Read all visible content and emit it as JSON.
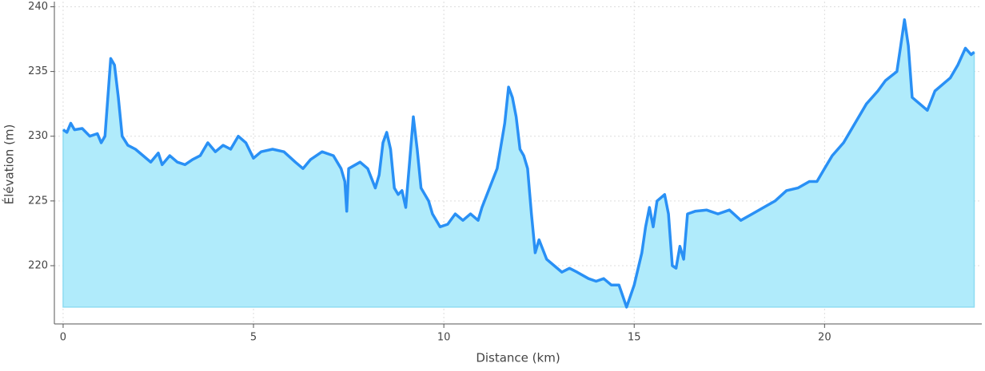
{
  "chart_data": {
    "type": "area",
    "x_label": "Distance (km)",
    "y_label": "Élévation (m)",
    "x": [
      0,
      0.1,
      0.2,
      0.3,
      0.5,
      0.7,
      0.9,
      1.0,
      1.1,
      1.2,
      1.25,
      1.35,
      1.45,
      1.55,
      1.7,
      1.9,
      2.1,
      2.3,
      2.5,
      2.6,
      2.8,
      3.0,
      3.2,
      3.4,
      3.6,
      3.8,
      4.0,
      4.2,
      4.4,
      4.6,
      4.8,
      5.0,
      5.2,
      5.5,
      5.8,
      6.1,
      6.3,
      6.5,
      6.8,
      7.1,
      7.3,
      7.4,
      7.45,
      7.5,
      7.8,
      8.0,
      8.2,
      8.3,
      8.4,
      8.5,
      8.6,
      8.7,
      8.8,
      8.9,
      9.0,
      9.1,
      9.2,
      9.3,
      9.4,
      9.6,
      9.7,
      9.9,
      10.1,
      10.3,
      10.5,
      10.7,
      10.9,
      11.0,
      11.2,
      11.4,
      11.6,
      11.7,
      11.8,
      11.9,
      12.0,
      12.1,
      12.2,
      12.3,
      12.4,
      12.5,
      12.7,
      12.9,
      13.1,
      13.3,
      13.5,
      13.8,
      14.0,
      14.2,
      14.4,
      14.6,
      14.8,
      15.0,
      15.2,
      15.3,
      15.4,
      15.5,
      15.6,
      15.8,
      15.9,
      16.0,
      16.1,
      16.2,
      16.3,
      16.4,
      16.6,
      16.9,
      17.2,
      17.5,
      17.8,
      18.1,
      18.4,
      18.7,
      19.0,
      19.3,
      19.6,
      19.8,
      20.0,
      20.2,
      20.5,
      20.8,
      21.1,
      21.4,
      21.6,
      21.9,
      22.0,
      22.1,
      22.2,
      22.3,
      22.5,
      22.7,
      22.9,
      23.1,
      23.3,
      23.5,
      23.7,
      23.85,
      23.93
    ],
    "values": [
      230.5,
      230.3,
      231,
      230.5,
      230.6,
      230,
      230.2,
      229.5,
      230,
      234,
      236,
      235.5,
      233,
      230,
      229.3,
      229,
      228.5,
      228,
      228.7,
      227.8,
      228.5,
      228,
      227.8,
      228.2,
      228.5,
      229.5,
      228.8,
      229.3,
      229,
      230,
      229.5,
      228.3,
      228.8,
      229,
      228.8,
      228,
      227.5,
      228.2,
      228.8,
      228.5,
      227.5,
      226.5,
      224.2,
      227.5,
      228,
      227.5,
      226,
      227,
      229.5,
      230.3,
      229,
      226,
      225.5,
      225.8,
      224.5,
      228,
      231.5,
      229,
      226,
      225,
      224,
      223,
      223.2,
      224,
      223.5,
      224,
      223.5,
      224.5,
      226,
      227.5,
      231,
      233.8,
      233,
      231.5,
      229,
      228.5,
      227.5,
      224,
      221,
      222,
      220.5,
      220,
      219.5,
      219.8,
      219.5,
      219,
      218.8,
      219,
      218.5,
      218.5,
      216.8,
      218.5,
      221,
      223,
      224.5,
      223,
      225,
      225.5,
      224,
      220,
      219.8,
      221.5,
      220.5,
      224,
      224.2,
      224.3,
      224,
      224.3,
      223.5,
      224,
      224.5,
      225,
      225.8,
      226,
      226.5,
      226.5,
      227.5,
      228.5,
      229.5,
      231,
      232.5,
      233.5,
      234.3,
      235,
      237,
      239,
      237,
      233,
      232.5,
      232,
      233.5,
      234,
      234.5,
      235.5,
      236.8,
      236.3,
      236.5
    ],
    "color": "#2990f5",
    "fill_color": "#b0ebfb",
    "xlim": [
      -0.23,
      24.13
    ],
    "ylim": [
      215.5,
      240.4
    ],
    "xticks": [
      0,
      5,
      10,
      15,
      20
    ],
    "yticks": [
      220,
      225,
      230,
      235,
      240
    ],
    "grid": true
  }
}
